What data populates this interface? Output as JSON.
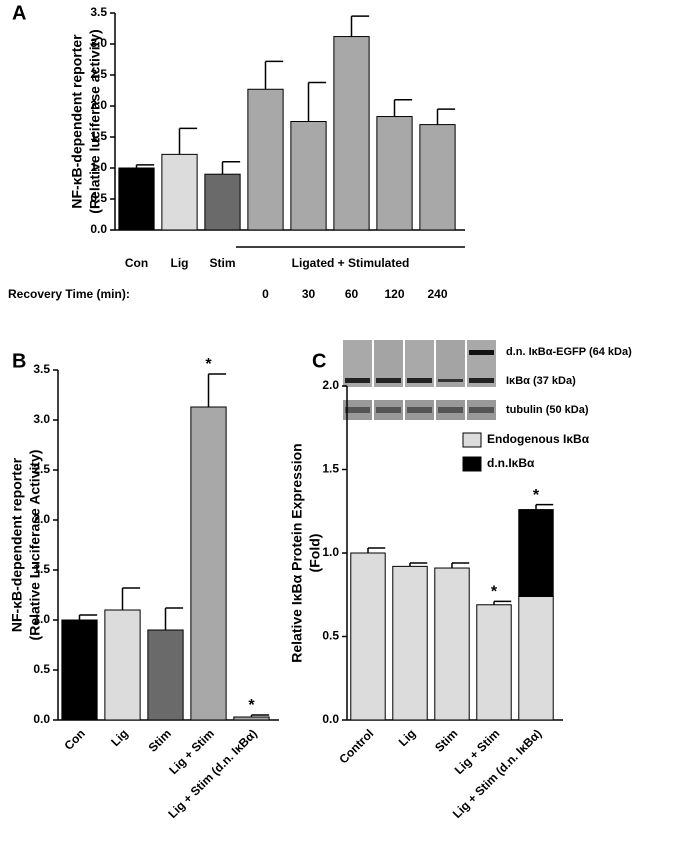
{
  "chart_data": [
    {
      "type": "bar",
      "panel": "A",
      "ylabel": [
        "NF-κB-dependent reporter",
        "(Relative luciferase activity)"
      ],
      "categories": [
        "Con",
        "Lig",
        "Stim",
        null,
        null,
        null,
        null,
        null
      ],
      "values": [
        1.0,
        1.22,
        0.9,
        2.27,
        1.75,
        3.12,
        1.83,
        1.7
      ],
      "errors": [
        0.05,
        0.42,
        0.2,
        0.45,
        0.63,
        0.33,
        0.27,
        0.25
      ],
      "colors": [
        "#000000",
        "#dcdcdc",
        "#6a6a6a",
        "#a8a8a8",
        "#a8a8a8",
        "#a8a8a8",
        "#a8a8a8",
        "#a8a8a8"
      ],
      "group_label": "Ligated + Stimulated",
      "recovery_label": "Recovery Time (min):",
      "recovery_times": [
        "0",
        "30",
        "60",
        "120",
        "240"
      ],
      "ylim": [
        0,
        3.5
      ],
      "yticks": [
        {
          "value": 0,
          "label": "0.0"
        },
        0.5,
        {
          "value": 1,
          "label": "1.0"
        },
        1.5,
        {
          "value": 2,
          "label": "2.0"
        },
        2.5,
        {
          "value": 3,
          "label": "3.0"
        },
        3.5
      ]
    },
    {
      "type": "bar",
      "panel": "B",
      "ylabel": [
        "NF-κB-dependent reporter",
        "(Relative Luciferase Activity)"
      ],
      "categories": [
        "Con",
        "Lig",
        "Stim",
        "Lig + Stim",
        "Lig + Stim (d.n. IκBα)"
      ],
      "values": [
        1.0,
        1.1,
        0.9,
        3.13,
        0.03
      ],
      "errors": [
        0.05,
        0.22,
        0.22,
        0.33,
        0.02
      ],
      "colors": [
        "#000000",
        "#dcdcdc",
        "#6a6a6a",
        "#a8a8a8",
        "#a8a8a8"
      ],
      "markers": [
        null,
        null,
        null,
        "*",
        "*"
      ],
      "ylim": [
        0,
        3.5
      ],
      "yticks": [
        {
          "value": 0,
          "label": "0.0"
        },
        0.5,
        {
          "value": 1,
          "label": "1.0"
        },
        1.5,
        {
          "value": 2,
          "label": "2.0"
        },
        2.5,
        {
          "value": 3,
          "label": "3.0"
        },
        3.5
      ]
    },
    {
      "type": "bar",
      "stacked": true,
      "panel": "C",
      "ylabel": [
        "Relative IκBα Protein Expression",
        "(Fold)"
      ],
      "categories": [
        "Control",
        "Lig",
        "Stim",
        "Lig + Stim",
        "Lig + Stim (d.n. IκBα)"
      ],
      "series": [
        {
          "name": "Endogenous IκBα",
          "color": "#dcdcdc",
          "values": [
            1.0,
            0.92,
            0.91,
            0.69,
            0.74
          ],
          "errors": [
            0.03,
            0.02,
            0.03,
            0.02,
            null
          ]
        },
        {
          "name": "d.n.IκBα",
          "color": "#000000",
          "values": [
            null,
            null,
            null,
            null,
            0.52
          ],
          "errors": [
            null,
            null,
            null,
            null,
            0.03
          ]
        }
      ],
      "markers": [
        null,
        null,
        null,
        "*",
        "*"
      ],
      "blot_labels": [
        "d.n. IκBα-EGFP (64 kDa)",
        "IκBα (37 kDa)",
        "tubulin (50 kDa)"
      ],
      "legend": "upper right",
      "ylim": [
        0,
        2
      ],
      "yticks": [
        {
          "value": 0,
          "label": "0.0"
        },
        0.5,
        {
          "value": 1,
          "label": "1.0"
        },
        1.5,
        {
          "value": 2,
          "label": "2.0"
        }
      ]
    }
  ]
}
